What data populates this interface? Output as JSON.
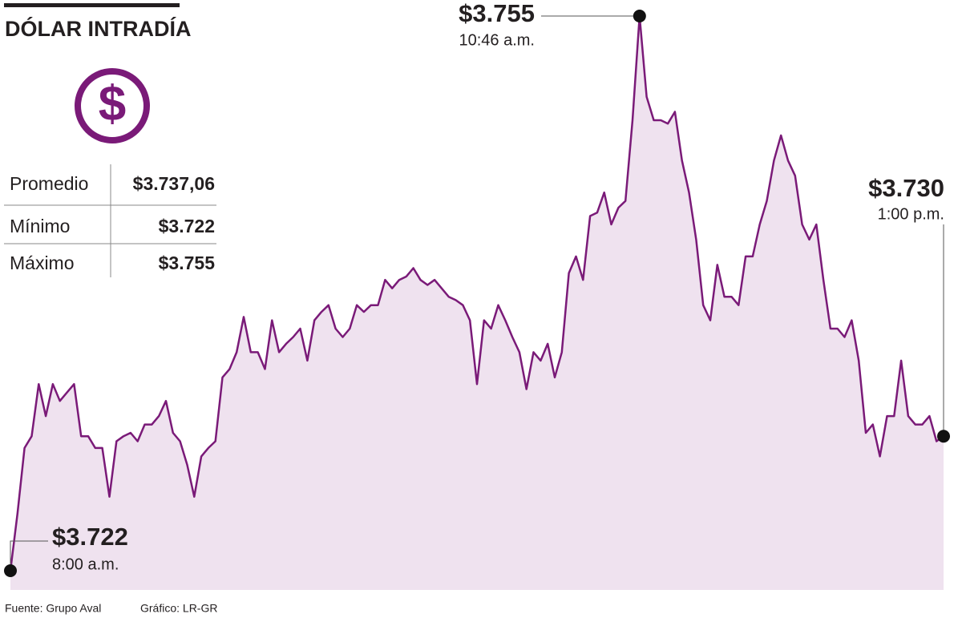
{
  "chart_data": {
    "type": "line",
    "title": "DÓLAR INTRADÍA",
    "color": "#7a1a78",
    "fill": "#efe2ef",
    "values": [
      3722,
      3725.4,
      3729.3,
      3730,
      3733.1,
      3731.2,
      3733.1,
      3732.1,
      3732.6,
      3733.1,
      3730,
      3730,
      3729.3,
      3729.3,
      3726.4,
      3729.7,
      3730,
      3730.2,
      3729.7,
      3730.7,
      3730.7,
      3731.2,
      3732.1,
      3730.2,
      3729.7,
      3728.3,
      3726.4,
      3728.8,
      3729.3,
      3729.7,
      3733.5,
      3734,
      3735,
      3737.1,
      3735,
      3735,
      3734,
      3736.9,
      3735,
      3735.5,
      3735.9,
      3736.4,
      3734.5,
      3736.9,
      3737.4,
      3737.8,
      3736.4,
      3735.9,
      3736.4,
      3737.8,
      3737.4,
      3737.8,
      3737.8,
      3739.3,
      3738.8,
      3739.3,
      3739.5,
      3740,
      3739.3,
      3739,
      3739.3,
      3738.8,
      3738.3,
      3738.1,
      3737.8,
      3736.9,
      3733.1,
      3736.9,
      3736.4,
      3737.8,
      3736.9,
      3735.9,
      3735,
      3732.8,
      3735,
      3734.5,
      3735.5,
      3733.5,
      3735,
      3739.7,
      3740.7,
      3739.3,
      3743.1,
      3743.3,
      3744.5,
      3742.6,
      3743.6,
      3744,
      3748.8,
      3755,
      3750.2,
      3748.8,
      3748.8,
      3748.6,
      3749.3,
      3746.4,
      3744.5,
      3741.7,
      3737.8,
      3736.9,
      3740.2,
      3738.3,
      3738.3,
      3737.8,
      3740.7,
      3740.7,
      3742.6,
      3744,
      3746.4,
      3747.9,
      3746.4,
      3745.5,
      3742.6,
      3741.7,
      3742.6,
      3739.3,
      3736.4,
      3736.4,
      3735.9,
      3736.9,
      3734.5,
      3730.2,
      3730.7,
      3728.8,
      3731.2,
      3731.2,
      3734.5,
      3731.2,
      3730.7,
      3730.7,
      3731.2,
      3729.7,
      3730
    ],
    "annotations": [
      {
        "value": 3722,
        "label": "$3.722",
        "time": "8:00 a.m."
      },
      {
        "value": 3755,
        "label": "$3.755",
        "time": "10:46 a.m."
      },
      {
        "value": 3730,
        "label": "$3.730",
        "time": "1:00 p.m."
      }
    ]
  },
  "stats": [
    {
      "label": "Promedio",
      "value": "$3.737,06"
    },
    {
      "label": "Mínimo",
      "value": "$3.722"
    },
    {
      "label": "Máximo",
      "value": "$3.755"
    }
  ],
  "footer": {
    "source": "Fuente: Grupo Aval",
    "credit": "Gráfico: LR-GR"
  }
}
